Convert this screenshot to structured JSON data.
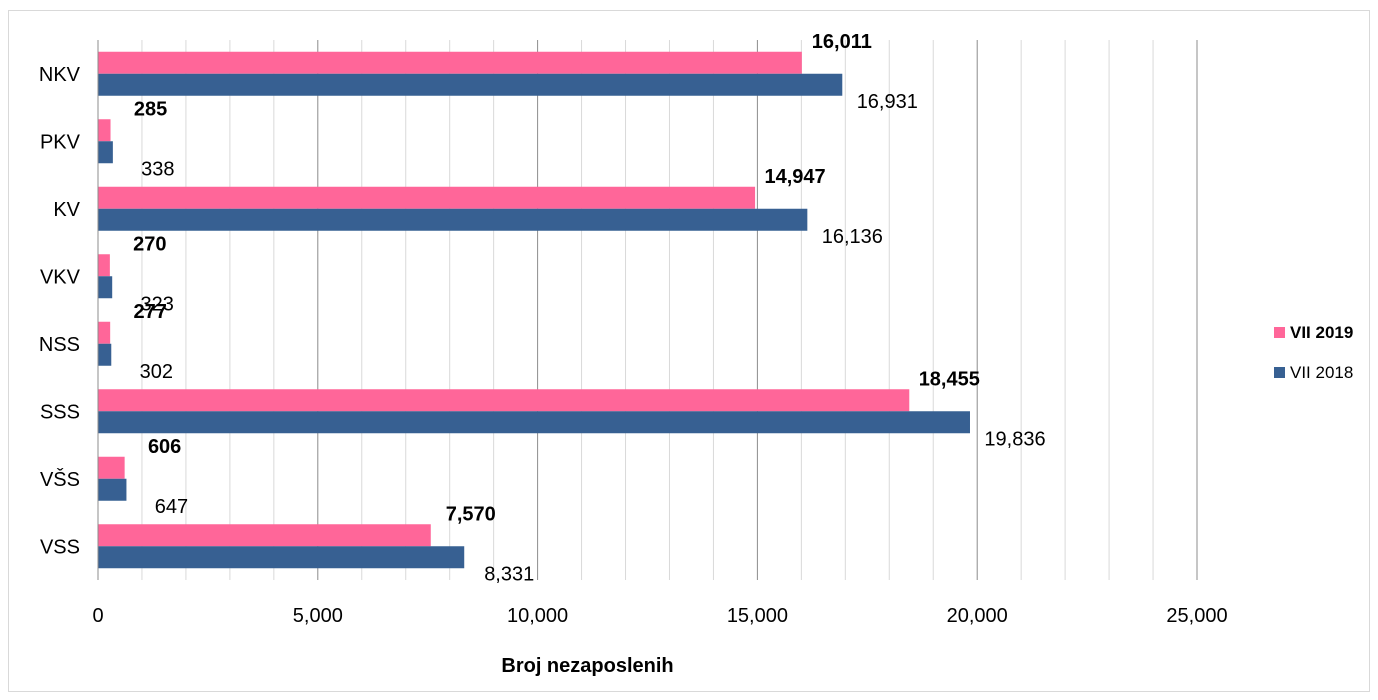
{
  "chart_data": {
    "type": "bar",
    "orientation": "horizontal",
    "categories": [
      "NKV",
      "PKV",
      "KV",
      "VKV",
      "NSS",
      "SSS",
      "VŠS",
      "VSS"
    ],
    "series": [
      {
        "name": "VII 2019",
        "color": "#ff6699",
        "values": [
          16011,
          285,
          14947,
          270,
          277,
          18455,
          606,
          7570
        ],
        "labels": [
          "16,011",
          "285",
          "14,947",
          "270",
          "277",
          "18,455",
          "606",
          "7,570"
        ],
        "label_bold": true
      },
      {
        "name": "VII 2018",
        "color": "#376092",
        "values": [
          16931,
          338,
          16136,
          323,
          302,
          19836,
          647,
          8331
        ],
        "labels": [
          "16,931",
          "338",
          "16,136",
          "323",
          "302",
          "19,836",
          "647",
          "8,331"
        ],
        "label_bold": false
      }
    ],
    "xlabel": "Broj nezaposlenih",
    "ylabel": "",
    "xlim": [
      0,
      25000
    ],
    "xticks": [
      0,
      5000,
      10000,
      15000,
      20000,
      25000
    ],
    "xtick_labels": [
      "0",
      "5,000",
      "10,000",
      "15,000",
      "20,000",
      "25,000"
    ],
    "minor_grid_step": 1000,
    "grid": true,
    "legend_position": "right"
  }
}
